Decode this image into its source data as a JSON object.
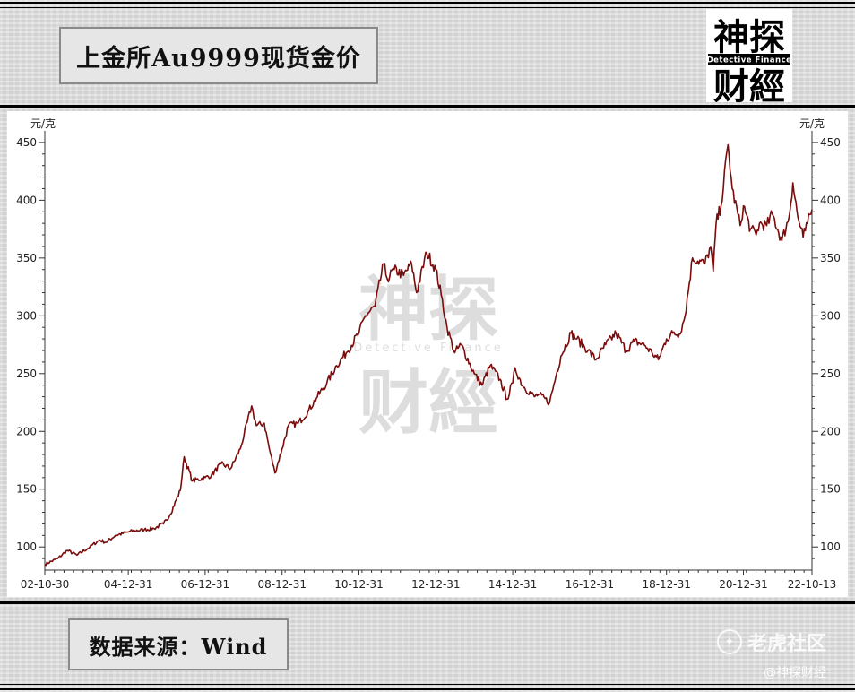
{
  "header": {
    "title": "上金所Au9999现货金价",
    "logo": {
      "top_text": "神探",
      "band_text": "Detective Finance",
      "bottom_text": "财經"
    }
  },
  "footer": {
    "source": "数据来源：Wind",
    "watermark": "老虎社区",
    "handle": "@神探财经"
  },
  "colors": {
    "line": "#7a0c0c",
    "axis": "#333333",
    "page_bg": "#d9d9d9"
  },
  "chart_data": {
    "type": "line",
    "ylabel_left": "元/克",
    "ylabel_right": "元/克",
    "y_ticks": [
      100,
      150,
      200,
      250,
      300,
      350,
      400,
      450
    ],
    "ylim": [
      80,
      460
    ],
    "x_ticks": [
      "02-10-30",
      "04-12-31",
      "06-12-31",
      "08-12-31",
      "10-12-31",
      "12-12-31",
      "14-12-31",
      "16-12-31",
      "18-12-31",
      "20-12-31",
      "22-10-13"
    ],
    "xlim": [
      "2002-10-30",
      "2022-10-13"
    ],
    "grid": false,
    "x": [
      "2002-10-30",
      "2003-03-01",
      "2003-06-01",
      "2003-09-01",
      "2004-01-01",
      "2004-04-01",
      "2004-06-01",
      "2004-09-01",
      "2004-12-31",
      "2005-03-01",
      "2005-06-01",
      "2005-09-01",
      "2005-12-01",
      "2006-02-01",
      "2006-05-10",
      "2006-06-15",
      "2006-09-01",
      "2006-12-31",
      "2007-03-01",
      "2007-06-01",
      "2007-09-01",
      "2007-12-01",
      "2008-03-17",
      "2008-05-01",
      "2008-07-15",
      "2008-09-01",
      "2008-10-24",
      "2008-12-31",
      "2009-03-01",
      "2009-06-01",
      "2009-09-01",
      "2009-12-01",
      "2010-03-01",
      "2010-06-01",
      "2010-09-01",
      "2010-12-31",
      "2011-03-01",
      "2011-06-01",
      "2011-08-22",
      "2011-09-26",
      "2011-12-01",
      "2012-02-28",
      "2012-05-15",
      "2012-07-01",
      "2012-10-05",
      "2012-12-31",
      "2013-02-20",
      "2013-04-16",
      "2013-06-28",
      "2013-08-28",
      "2013-12-31",
      "2014-03-14",
      "2014-06-01",
      "2014-09-01",
      "2014-11-07",
      "2014-12-31",
      "2015-01-22",
      "2015-04-01",
      "2015-07-24",
      "2015-09-01",
      "2015-12-17",
      "2016-02-15",
      "2016-04-01",
      "2016-07-06",
      "2016-09-01",
      "2016-12-15",
      "2017-03-01",
      "2017-06-01",
      "2017-09-08",
      "2017-12-12",
      "2018-03-01",
      "2018-06-01",
      "2018-08-16",
      "2018-10-15",
      "2018-12-31",
      "2019-03-01",
      "2019-05-01",
      "2019-06-25",
      "2019-09-04",
      "2019-12-31",
      "2020-02-24",
      "2020-03-19",
      "2020-04-15",
      "2020-06-01",
      "2020-08-06",
      "2020-09-15",
      "2020-11-30",
      "2020-12-31",
      "2021-03-08",
      "2021-05-01",
      "2021-06-01",
      "2021-08-09",
      "2021-10-01",
      "2021-12-31",
      "2022-03-08",
      "2022-04-15",
      "2022-06-01",
      "2022-07-21",
      "2022-09-01",
      "2022-10-13"
    ],
    "y": [
      85,
      90,
      97,
      93,
      100,
      106,
      104,
      110,
      113,
      114,
      115,
      116,
      120,
      128,
      149,
      178,
      157,
      160,
      162,
      172,
      168,
      185,
      222,
      205,
      207,
      185,
      164,
      185,
      205,
      207,
      217,
      230,
      242,
      257,
      268,
      285,
      300,
      308,
      345,
      332,
      340,
      335,
      345,
      320,
      355,
      340,
      318,
      290,
      268,
      275,
      250,
      240,
      257,
      245,
      228,
      242,
      255,
      240,
      230,
      232,
      225,
      248,
      265,
      285,
      280,
      270,
      262,
      275,
      285,
      270,
      278,
      275,
      268,
      262,
      280,
      285,
      284,
      300,
      350,
      345,
      360,
      338,
      380,
      395,
      448,
      410,
      378,
      395,
      375,
      370,
      380,
      378,
      388,
      365,
      385,
      415,
      385,
      368,
      380,
      392
    ]
  }
}
